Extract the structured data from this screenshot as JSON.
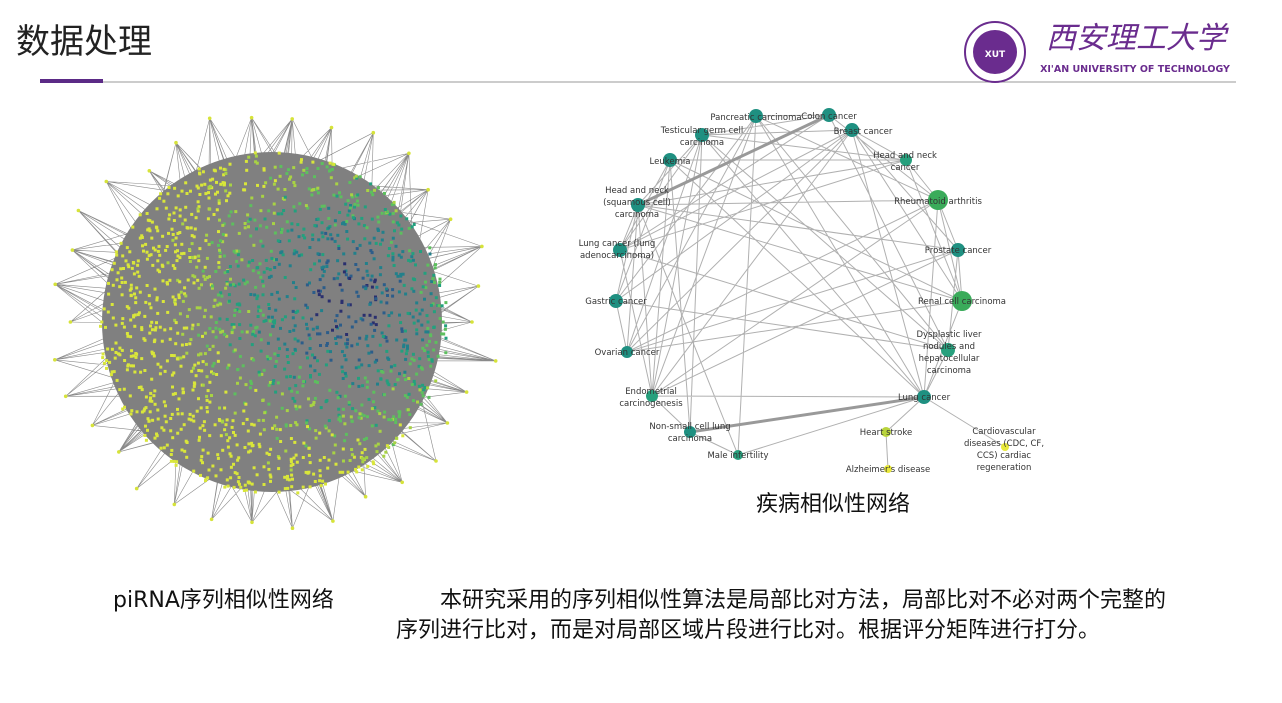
{
  "header": {
    "title": "数据处理"
  },
  "logo": {
    "badge": "XUT",
    "university_cn": "西安理工大学",
    "university_en": "XI'AN UNIVERSITY OF TECHNOLOGY"
  },
  "figures": [
    {
      "caption": "piRNA序列相似性网络"
    },
    {
      "caption": "疾病相似性网络",
      "nodes": [
        {
          "label": [
            "Pancreatic carcinoma"
          ]
        },
        {
          "label": [
            "Colon cancer"
          ]
        },
        {
          "label": [
            "Testicular germ cell",
            "carcinoma"
          ]
        },
        {
          "label": [
            "Breast cancer"
          ]
        },
        {
          "label": [
            "Leukemia"
          ]
        },
        {
          "label": [
            "Head and neck",
            "cancer"
          ]
        },
        {
          "label": [
            "Head and neck",
            "(squamous cell)",
            "carcinoma"
          ]
        },
        {
          "label": [
            "Rheumatoid arthritis"
          ]
        },
        {
          "label": [
            "Lung cancer (lung",
            "adenocarcinoma)"
          ]
        },
        {
          "label": [
            "Prostate cancer"
          ]
        },
        {
          "label": [
            "Gastric cancer"
          ]
        },
        {
          "label": [
            "Renal cell carcinoma"
          ]
        },
        {
          "label": [
            "Ovarian cancer"
          ]
        },
        {
          "label": [
            "Dysplastic liver",
            "nodules and",
            "hepatocellular",
            "carcinoma"
          ]
        },
        {
          "label": [
            "Endometrial",
            "carcinogenesis"
          ]
        },
        {
          "label": [
            "Lung cancer"
          ]
        },
        {
          "label": [
            "Non-small cell lung",
            "carcinoma"
          ]
        },
        {
          "label": [
            "Heart stroke"
          ]
        },
        {
          "label": [
            "Cardiovascular",
            "diseases (CDC, CF,",
            "CCS) cardiac",
            "regeneration"
          ]
        },
        {
          "label": [
            "Male infertility"
          ]
        },
        {
          "label": [
            "Alzheimer's disease"
          ]
        }
      ]
    }
  ],
  "body": {
    "text": "本研究采用的序列相似性算法是局部比对方法，局部比对不必对两个完整的序列进行比对，而是对局部区域片段进行比对。根据评分矩阵进行打分。"
  }
}
